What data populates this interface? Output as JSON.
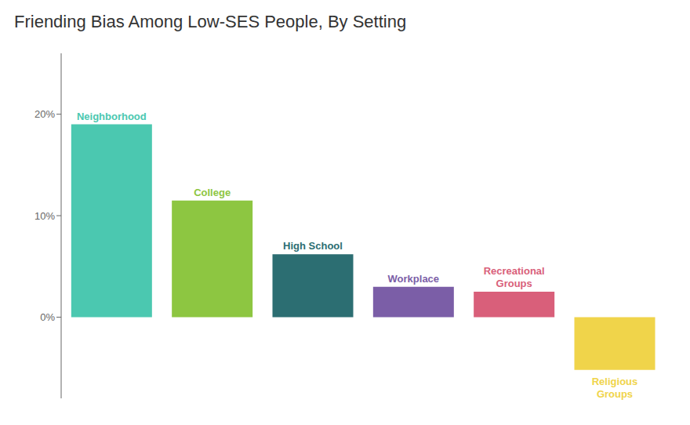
{
  "chart_data": {
    "type": "bar",
    "title": "Friending Bias Among Low-SES People, By Setting",
    "categories": [
      "Neighborhood",
      "College",
      "High School",
      "Workplace",
      "Recreational\nGroups",
      "Religious\nGroups"
    ],
    "values": [
      19.0,
      11.5,
      6.2,
      3.0,
      2.5,
      -5.2
    ],
    "colors": [
      "#4BC8B0",
      "#8DC641",
      "#2C6E72",
      "#7B5EA7",
      "#D95F7A",
      "#F0D44A"
    ],
    "ylim": [
      -8,
      26
    ],
    "yticks": [
      {
        "value": 0,
        "label": "0%"
      },
      {
        "value": 10,
        "label": "10%"
      },
      {
        "value": 20,
        "label": "20%"
      }
    ],
    "grid": false,
    "tick_labels": "y"
  }
}
